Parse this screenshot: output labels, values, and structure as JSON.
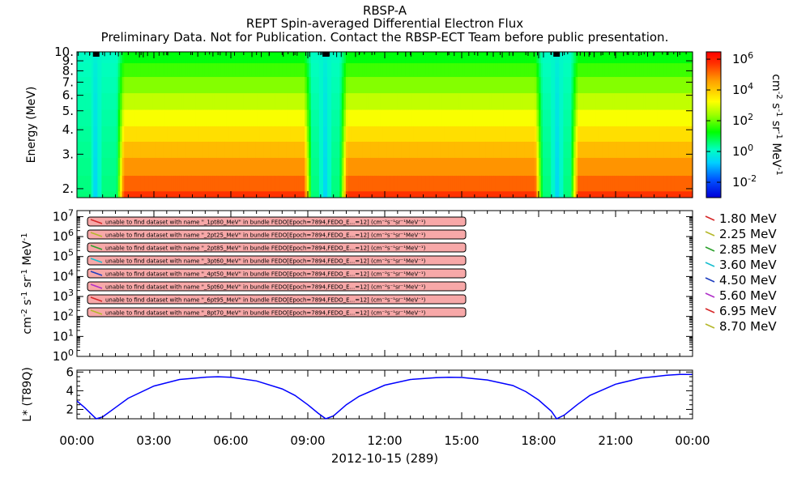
{
  "titles": {
    "line1": "RBSP-A",
    "line2": "REPT Spin-averaged Differential Electron Flux",
    "line3": "Preliminary Data. Not for Publication. Contact the RBSP-ECT Team before public presentation."
  },
  "chart_data": [
    {
      "type": "heatmap",
      "ylabel": "Energy (MeV)",
      "y_scale": "log",
      "ylim": [
        1.8,
        10.0
      ],
      "y_ticks": [
        "2.",
        "3.",
        "4.",
        "5.",
        "6.",
        "7.",
        "8.",
        "9.",
        "10."
      ],
      "colorbar_label": "cm^-2 s^-1 sr^-1 MeV^-1",
      "colorbar_scale": "log",
      "colorbar_range": [
        0.001,
        3000000
      ],
      "colorbar_ticks": [
        "10^-2",
        "10^0",
        "10^2",
        "10^4",
        "10^6"
      ],
      "energy_channels_MeV": [
        1.8,
        2.1,
        2.6,
        3.2,
        3.8,
        4.6,
        5.6,
        6.8,
        8.2,
        9.4
      ],
      "radiation_belt_intervals_hours": [
        [
          1.55,
          9.15
        ],
        [
          10.25,
          18.15
        ],
        [
          19.25,
          24.0
        ]
      ],
      "slot_crossings_hours": [
        0.75,
        9.7,
        18.7
      ],
      "x_range_hours": [
        0,
        24
      ]
    },
    {
      "type": "line",
      "ylabel": "cm^-2 s^-1 sr^-1 MeV^-1",
      "y_scale": "log",
      "ylim": [
        1,
        20000000
      ],
      "y_ticks": [
        "10^0",
        "10^1",
        "10^2",
        "10^3",
        "10^4",
        "10^5",
        "10^6",
        "10^7"
      ],
      "legend_position": "right",
      "series": [
        {
          "name": "1.80 MeV",
          "color": "#d62728",
          "values": []
        },
        {
          "name": "2.25 MeV",
          "color": "#b5b82a",
          "values": []
        },
        {
          "name": "2.85 MeV",
          "color": "#2ca02c",
          "values": []
        },
        {
          "name": "3.60 MeV",
          "color": "#17becf",
          "values": []
        },
        {
          "name": "4.50 MeV",
          "color": "#1f3fbf",
          "values": []
        },
        {
          "name": "5.60 MeV",
          "color": "#b030c8",
          "values": []
        },
        {
          "name": "6.95 MeV",
          "color": "#d62728",
          "values": []
        },
        {
          "name": "8.70 MeV",
          "color": "#b5b82a",
          "values": []
        }
      ],
      "messages": [
        "unable to find dataset with name \"_1pt80_MeV\" in bundle FEDO[Epoch=7894,FEDO_E...=12] (cm⁻²s⁻¹sr⁻¹MeV⁻¹)",
        "unable to find dataset with name \"_2pt25_MeV\" in bundle FEDO[Epoch=7894,FEDO_E...=12] (cm⁻²s⁻¹sr⁻¹MeV⁻¹)",
        "unable to find dataset with name \"_2pt85_MeV\" in bundle FEDO[Epoch=7894,FEDO_E...=12] (cm⁻²s⁻¹sr⁻¹MeV⁻¹)",
        "unable to find dataset with name \"_3pt60_MeV\" in bundle FEDO[Epoch=7894,FEDO_E...=12] (cm⁻²s⁻¹sr⁻¹MeV⁻¹)",
        "unable to find dataset with name \"_4pt50_MeV\" in bundle FEDO[Epoch=7894,FEDO_E...=12] (cm⁻²s⁻¹sr⁻¹MeV⁻¹)",
        "unable to find dataset with name \"_5pt60_MeV\" in bundle FEDO[Epoch=7894,FEDO_E...=12] (cm⁻²s⁻¹sr⁻¹MeV⁻¹)",
        "unable to find dataset with name \"_6pt95_MeV\" in bundle FEDO[Epoch=7894,FEDO_E...=12] (cm⁻²s⁻¹sr⁻¹MeV⁻¹)",
        "unable to find dataset with name \"_8pt70_MeV\" in bundle FEDO[Epoch=7894,FEDO_E...=12] (cm⁻²s⁻¹sr⁻¹MeV⁻¹)"
      ]
    },
    {
      "type": "line",
      "ylabel": "L* (T89Q)",
      "ylim": [
        1.0,
        6.2
      ],
      "y_ticks": [
        2,
        4,
        6
      ],
      "series": [
        {
          "name": "",
          "color": "#0000ff",
          "x": [
            0.0,
            0.3,
            0.6,
            0.75,
            1.0,
            1.5,
            2.0,
            3.0,
            4.0,
            5.0,
            5.5,
            6.0,
            7.0,
            8.0,
            8.5,
            9.0,
            9.4,
            9.7,
            10.0,
            10.5,
            11.0,
            12.0,
            13.0,
            14.0,
            14.5,
            15.0,
            16.0,
            17.0,
            17.5,
            18.0,
            18.5,
            18.7,
            19.0,
            19.5,
            20.0,
            21.0,
            22.0,
            23.0,
            23.5,
            24.0
          ],
          "y": [
            2.9,
            2.2,
            1.4,
            1.0,
            1.2,
            2.2,
            3.2,
            4.5,
            5.2,
            5.45,
            5.5,
            5.45,
            5.05,
            4.2,
            3.5,
            2.5,
            1.6,
            1.0,
            1.3,
            2.5,
            3.4,
            4.6,
            5.2,
            5.4,
            5.45,
            5.42,
            5.15,
            4.55,
            3.9,
            3.0,
            1.8,
            1.0,
            1.4,
            2.5,
            3.5,
            4.7,
            5.35,
            5.65,
            5.75,
            5.75
          ]
        }
      ]
    }
  ],
  "x_axis": {
    "tick_labels": [
      "00:00",
      "03:00",
      "06:00",
      "09:00",
      "12:00",
      "15:00",
      "18:00",
      "21:00",
      "00:00"
    ],
    "label": "2012-10-15 (289)"
  }
}
